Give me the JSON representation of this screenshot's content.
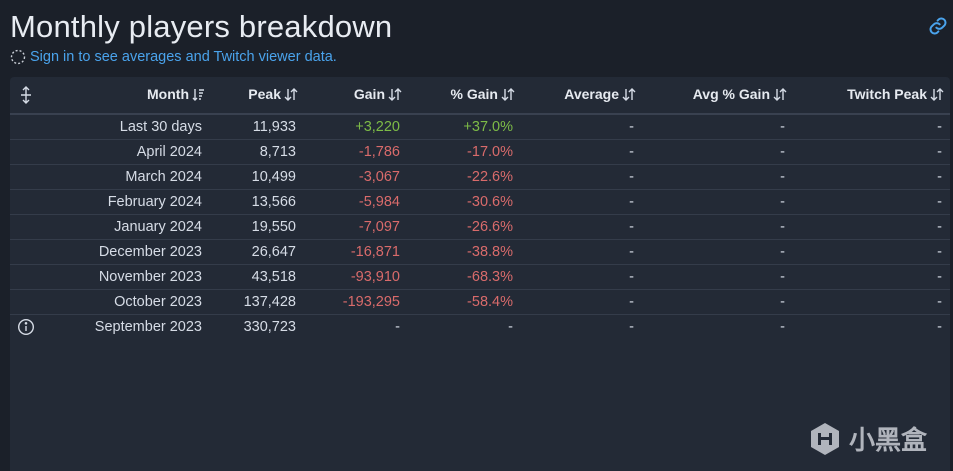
{
  "page": {
    "title": "Monthly players breakdown",
    "signin_text": "Sign in to see averages and Twitch viewer data."
  },
  "table": {
    "columns": [
      "Month",
      "Peak",
      "Gain",
      "% Gain",
      "Average",
      "Avg % Gain",
      "Twitch Peak"
    ],
    "rows": [
      {
        "month": "Last 30 days",
        "peak": "11,933",
        "gain": "+3,220",
        "pct": "+37.0%",
        "avg": "-",
        "avg_pct": "-",
        "twitch": "-",
        "trend": "pos"
      },
      {
        "month": "April 2024",
        "peak": "8,713",
        "gain": "-1,786",
        "pct": "-17.0%",
        "avg": "-",
        "avg_pct": "-",
        "twitch": "-",
        "trend": "neg"
      },
      {
        "month": "March 2024",
        "peak": "10,499",
        "gain": "-3,067",
        "pct": "-22.6%",
        "avg": "-",
        "avg_pct": "-",
        "twitch": "-",
        "trend": "neg"
      },
      {
        "month": "February 2024",
        "peak": "13,566",
        "gain": "-5,984",
        "pct": "-30.6%",
        "avg": "-",
        "avg_pct": "-",
        "twitch": "-",
        "trend": "neg"
      },
      {
        "month": "January 2024",
        "peak": "19,550",
        "gain": "-7,097",
        "pct": "-26.6%",
        "avg": "-",
        "avg_pct": "-",
        "twitch": "-",
        "trend": "neg"
      },
      {
        "month": "December 2023",
        "peak": "26,647",
        "gain": "-16,871",
        "pct": "-38.8%",
        "avg": "-",
        "avg_pct": "-",
        "twitch": "-",
        "trend": "neg"
      },
      {
        "month": "November 2023",
        "peak": "43,518",
        "gain": "-93,910",
        "pct": "-68.3%",
        "avg": "-",
        "avg_pct": "-",
        "twitch": "-",
        "trend": "neg"
      },
      {
        "month": "October 2023",
        "peak": "137,428",
        "gain": "-193,295",
        "pct": "-58.4%",
        "avg": "-",
        "avg_pct": "-",
        "twitch": "-",
        "trend": "neg"
      },
      {
        "month": "September 2023",
        "peak": "330,723",
        "gain": "-",
        "pct": "-",
        "avg": "-",
        "avg_pct": "-",
        "twitch": "-",
        "trend": "none",
        "info": true
      }
    ]
  },
  "watermark": {
    "text": "小黑盒"
  },
  "colors": {
    "positive": "#7dbb47",
    "negative": "#d96b6b",
    "link": "#4aa3ec"
  },
  "icons": {
    "header": "expand-vertical-icon",
    "link": "link-icon",
    "info": "info-icon",
    "loading": "loading-circle-icon",
    "sort": "sort-icon"
  }
}
